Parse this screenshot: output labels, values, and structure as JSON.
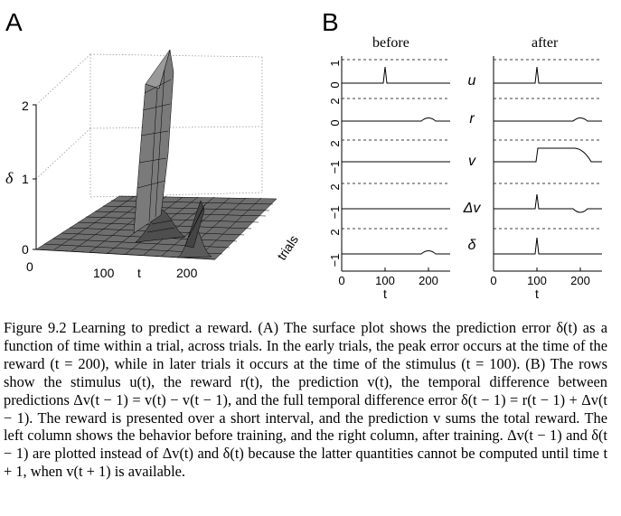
{
  "panel_a": {
    "label": "A",
    "y_label": "δ",
    "y_ticks": [
      "2",
      "1",
      "0"
    ],
    "x_ticks": [
      "0",
      "100",
      "200"
    ],
    "x_label": "t",
    "depth_label": "trials"
  },
  "panel_b": {
    "label": "B",
    "col_before": "before",
    "col_after": "after",
    "row_labels": [
      "u",
      "r",
      "v",
      "Δv",
      "δ"
    ],
    "y_ticks": [
      [
        "1",
        "0"
      ],
      [
        "2",
        "0"
      ],
      [
        "2",
        "−1"
      ],
      [
        "2",
        "−1"
      ],
      [
        "2",
        "−1"
      ]
    ],
    "x_ticks_left": [
      "0",
      "100",
      "200"
    ],
    "x_ticks_right": [
      "0",
      "100",
      "200"
    ],
    "x_label": "t"
  },
  "caption": {
    "text": "Figure 9.2 Learning to predict a reward. (A) The surface plot shows the prediction error δ(t) as a function of time within a trial, across trials. In the early trials, the peak error occurs at the time of the reward (t = 200), while in later trials it occurs at the time of the stimulus (t = 100). (B) The rows show the stimulus u(t), the reward r(t), the prediction v(t), the temporal difference between predictions Δv(t − 1) = v(t) − v(t − 1), and the full temporal difference error δ(t − 1) = r(t − 1) + Δv(t − 1). The reward is presented over a short interval, and the prediction v sums the total reward. The left column shows the behavior before training, and the right column, after training. Δv(t − 1) and δ(t − 1) are plotted instead of Δv(t) and δ(t) because the latter quantities cannot be computed until time t + 1, when v(t + 1) is available."
  }
}
